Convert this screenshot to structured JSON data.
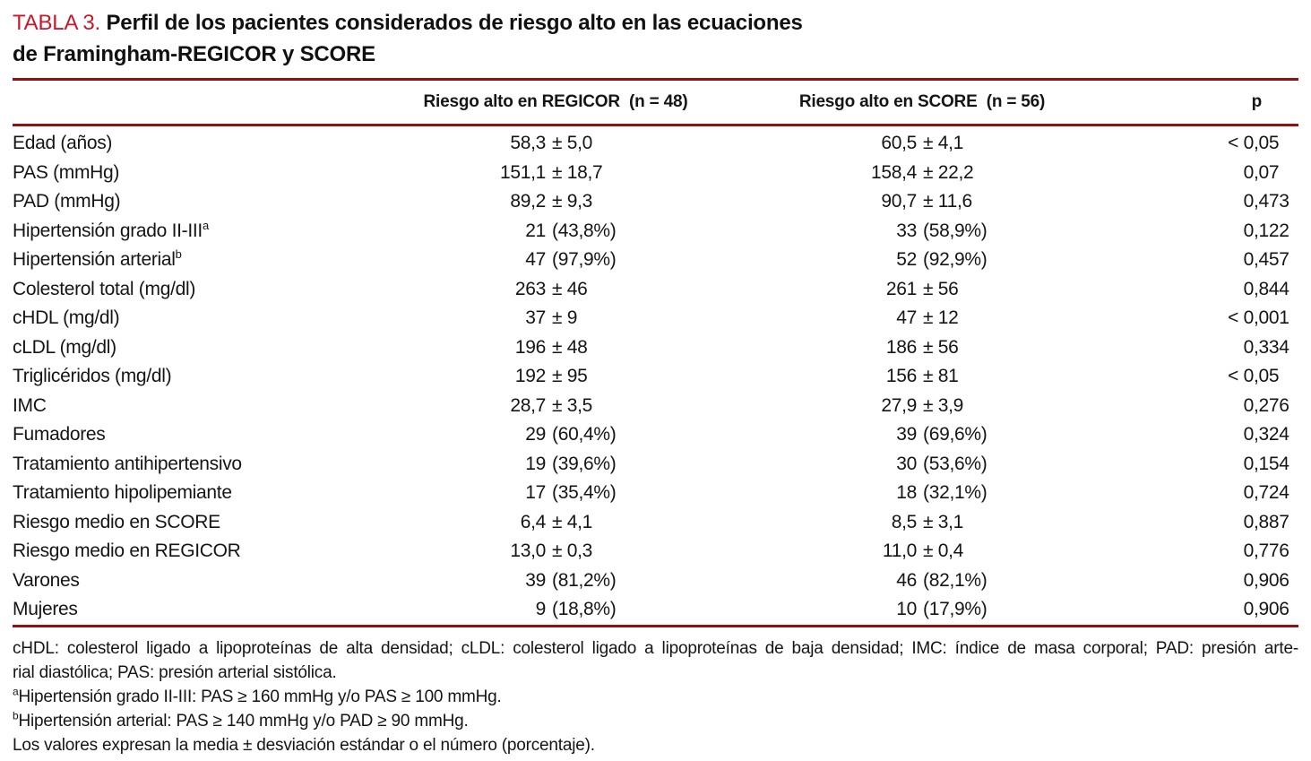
{
  "colors": {
    "title_red": "#c41a2b",
    "rule_red": "#8f1111",
    "text": "#151515"
  },
  "title": {
    "label": "TABLA 3.",
    "line1": "Perfil de los pacientes considerados de riesgo alto en las ecuaciones",
    "line2": "de Framingham-REGICOR y SCORE"
  },
  "table": {
    "columns": {
      "label": "",
      "regicor": "Riesgo alto en REGICOR  (n = 48)",
      "score": "Riesgo alto en SCORE  (n = 56)",
      "p": "p"
    },
    "rows": [
      {
        "label": "Edad (años)",
        "regicor": "58,3 ± 5,0",
        "score": "60,5 ± 4,1",
        "p": "< 0,05"
      },
      {
        "label": "PAS (mmHg)",
        "regicor": "151,1 ± 18,7",
        "score": "158,4 ± 22,2",
        "p": "0,07"
      },
      {
        "label": "PAD (mmHg)",
        "regicor": "89,2 ± 9,3",
        "score": "90,7 ± 11,6",
        "p": "0,473"
      },
      {
        "label": "Hipertensión grado II-III",
        "sup": "a",
        "regicor": "21 (43,8%)",
        "score": "33 (58,9%)",
        "p": "0,122"
      },
      {
        "label": "Hipertensión arterial",
        "sup": "b",
        "regicor": "47 (97,9%)",
        "score": "52 (92,9%)",
        "p": "0,457"
      },
      {
        "label": "Colesterol total (mg/dl)",
        "regicor": "263 ± 46",
        "score": "261 ± 56",
        "p": "0,844"
      },
      {
        "label": "cHDL (mg/dl)",
        "regicor": "37 ± 9",
        "score": "47 ± 12",
        "p": "< 0,001"
      },
      {
        "label": "cLDL (mg/dl)",
        "regicor": "196 ± 48",
        "score": "186 ± 56",
        "p": "0,334"
      },
      {
        "label": "Triglicéridos (mg/dl)",
        "regicor": "192 ± 95",
        "score": "156 ± 81",
        "p": "< 0,05"
      },
      {
        "label": "IMC",
        "regicor": "28,7 ± 3,5",
        "score": "27,9 ± 3,9",
        "p": "0,276"
      },
      {
        "label": "Fumadores",
        "regicor": "29 (60,4%)",
        "score": "39 (69,6%)",
        "p": "0,324"
      },
      {
        "label": "Tratamiento antihipertensivo",
        "regicor": "19 (39,6%)",
        "score": "30 (53,6%)",
        "p": "0,154"
      },
      {
        "label": "Tratamiento hipolipemiante",
        "regicor": "17 (35,4%)",
        "score": "18 (32,1%)",
        "p": "0,724"
      },
      {
        "label": "Riesgo medio en SCORE",
        "regicor": "6,4 ± 4,1",
        "score": "8,5 ± 3,1",
        "p": "0,887"
      },
      {
        "label": "Riesgo medio en REGICOR",
        "regicor": "13,0 ± 0,3",
        "score": "11,0 ± 0,4",
        "p": "0,776"
      },
      {
        "label": "Varones",
        "regicor": "39 (81,2%)",
        "score": "46 (82,1%)",
        "p": "0,906"
      },
      {
        "label": "Mujeres",
        "regicor": "9 (18,8%)",
        "score": "10 (17,9%)",
        "p": "0,906"
      }
    ]
  },
  "footnotes": [
    {
      "text": "cHDL: colesterol ligado a lipoproteínas de alta densidad; cLDL: colesterol ligado a lipoproteínas de baja densidad; IMC: índice de masa corporal; PAD: presión arte-"
    },
    {
      "text": "rial diastólica; PAS: presión arterial sistólica."
    },
    {
      "sup": "a",
      "text": "Hipertensión grado II-III: PAS ≥ 160 mmHg y/o PAS ≥ 100 mmHg."
    },
    {
      "sup": "b",
      "text": "Hipertensión arterial: PAS ≥ 140 mmHg y/o PAD ≥ 90 mmHg."
    },
    {
      "text": "Los valores expresan la media ± desviación estándar o el número (porcentaje)."
    }
  ]
}
